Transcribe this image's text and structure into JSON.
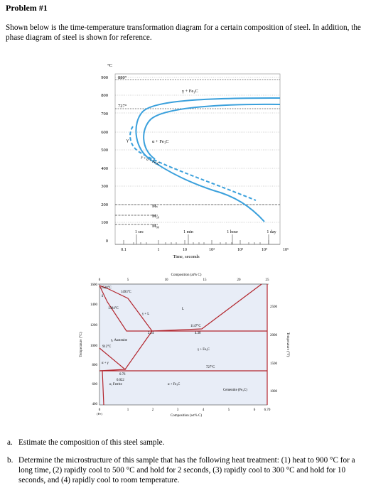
{
  "problem_title": "Problem #1",
  "intro_text": "Shown below is the time-temperature transformation diagram for a certain composition of steel. In addition, the phase diagram of steel is shown for reference.",
  "ttt": {
    "y_unit": "°C",
    "y_ticks": [
      "900",
      "800",
      "700",
      "600",
      "500",
      "400",
      "300",
      "200",
      "100",
      "0"
    ],
    "x_ticks": [
      "0.1",
      "1",
      "10",
      "10²",
      "10³",
      "10⁴",
      "10⁵"
    ],
    "xlabel": "Time, seconds",
    "time_markers": [
      "1 sec",
      "1 min",
      "1 hour",
      "1 day"
    ],
    "labels": {
      "t880": "880°",
      "t727": "727°",
      "gamma_fe3c": "γ + Fe₃C",
      "gamma": "γ",
      "alpha_fe3c": "α + Fe₃C",
      "gamma_alpha_fe3c": "γ + α + Fe₃C",
      "ms": "Mₛ",
      "m50": "M₅₀",
      "m90": "M₉₀"
    },
    "colors": {
      "curve": "#3aa0dc",
      "grid": "#9a9a9a"
    }
  },
  "phase": {
    "top_axis_title": "Composition (at% C)",
    "top_ticks": [
      "0",
      "5",
      "10",
      "15",
      "20",
      "25"
    ],
    "bottom_axis_title": "Composition (wt% C)",
    "bottom_ticks": [
      "0",
      "1",
      "2",
      "3",
      "4",
      "5",
      "6",
      "6.70"
    ],
    "bottom_sub": "(Fe)",
    "left_axis_title": "Temperature (°C)",
    "left_ticks": [
      "1600",
      "1400",
      "1200",
      "1000",
      "800",
      "600",
      "400"
    ],
    "right_axis_title": "Temperature (°F)",
    "right_ticks": [
      "2500",
      "2000",
      "1500",
      "1000"
    ],
    "labels": {
      "t1538": "1538°C",
      "t1493": "1493°C",
      "t1394": "1394°C",
      "t1147": "1147°C",
      "t912": "912°C",
      "t727": "727°C",
      "c214": "2.14",
      "c430": "4.30",
      "c076": "0.76",
      "c0022": "0.022",
      "delta": "δ",
      "gamma_L": "γ + L",
      "L": "L",
      "austenite": "γ, Austenite",
      "gamma_fe3c": "γ + Fe₃C",
      "alpha": "α",
      "ferrite": "α, Ferrite",
      "alpha_fe3c": "α + Fe₃C",
      "cementite": "Cementite (Fe₃C)",
      "a_g": "α + γ"
    },
    "colors": {
      "line": "#b3262e",
      "fill": "#e8edf7"
    }
  },
  "questions": [
    {
      "num": "a.",
      "text": "Estimate the composition of this steel sample."
    },
    {
      "num": "b.",
      "text": "Determine the microstructure of this sample that has the following heat treatment: (1) heat to 900 °C for a long time, (2) rapidly cool to 500 °C and hold for 2 seconds, (3) rapidly cool to 300 °C and hold for 10 seconds, and (4) rapidly cool to room temperature."
    }
  ]
}
